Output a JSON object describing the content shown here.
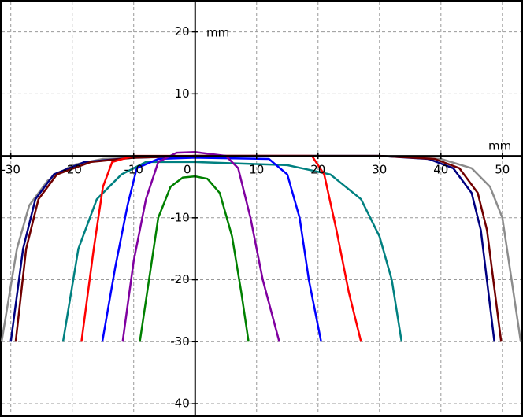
{
  "chart_data": {
    "type": "line",
    "x_label": "mm",
    "y_label": "mm",
    "xlim": [
      -31.5,
      53.1
    ],
    "ylim": [
      -41.9,
      24.9
    ],
    "xticks": [
      -30,
      -20,
      -10,
      0,
      10,
      20,
      30,
      40,
      50
    ],
    "yticks": [
      -40,
      -30,
      -20,
      -10,
      10,
      20
    ],
    "grid": true,
    "series": [
      {
        "color": "#8c8c8c",
        "x": [
          -31.5,
          -29,
          -27,
          -24,
          -20,
          -15,
          0,
          30,
          40,
          45,
          48,
          50,
          53
        ],
        "values": [
          -30,
          -15,
          -8,
          -4,
          -1.5,
          -0.5,
          0,
          0,
          -0.5,
          -2,
          -5,
          -10,
          -30
        ]
      },
      {
        "color": "#000080",
        "x": [
          -30,
          -28,
          -26,
          -23,
          -18,
          -10,
          0,
          30,
          38,
          42,
          45,
          46.5,
          48.7
        ],
        "values": [
          -30,
          -15,
          -7,
          -3,
          -1,
          -0.3,
          0,
          0,
          -0.5,
          -2,
          -6,
          -12,
          -30
        ]
      },
      {
        "color": "#700000",
        "x": [
          -29.2,
          -27.5,
          -25.5,
          -22.5,
          -17,
          -10,
          0,
          30,
          39,
          43,
          46,
          47.5,
          49.8
        ],
        "values": [
          -30,
          -15,
          -7,
          -3,
          -1,
          -0.3,
          0,
          0,
          -0.5,
          -2,
          -6,
          -12,
          -30
        ]
      },
      {
        "color": "#008080",
        "x": [
          -21.5,
          -19,
          -16,
          -12,
          -8,
          0,
          15,
          22,
          27,
          30,
          32,
          33.6
        ],
        "values": [
          -30,
          -15,
          -7,
          -3,
          -1,
          -1,
          -1.5,
          -3,
          -7,
          -13,
          -20,
          -30
        ]
      },
      {
        "color": "#ff0000",
        "x": [
          -18.5,
          -16.5,
          -15,
          -13.5,
          -10,
          0,
          19,
          21,
          23,
          25,
          27
        ],
        "values": [
          -30,
          -15,
          -5,
          -1,
          0,
          0,
          0,
          -3,
          -12,
          -22,
          -30
        ]
      },
      {
        "color": "#0000ff",
        "x": [
          -15.1,
          -13,
          -11,
          -9.5,
          -6,
          0,
          12,
          15,
          17,
          18.5,
          20.5
        ],
        "values": [
          -30,
          -18,
          -8,
          -2,
          -0.5,
          -0.3,
          -0.5,
          -3,
          -10,
          -20,
          -30
        ]
      },
      {
        "color": "#8000a0",
        "x": [
          -11.8,
          -10,
          -8,
          -6,
          -3,
          0,
          5,
          7,
          9,
          11,
          13.7
        ],
        "values": [
          -30,
          -17,
          -7,
          -1,
          0.5,
          0.6,
          0,
          -2,
          -10,
          -20,
          -30
        ]
      },
      {
        "color": "#008000",
        "x": [
          -9,
          -7.5,
          -6,
          -4,
          -2,
          0,
          2,
          4,
          6,
          7.5,
          8.7
        ],
        "values": [
          -30,
          -20,
          -10,
          -5,
          -3.5,
          -3.3,
          -3.7,
          -6,
          -13,
          -22,
          -30
        ]
      }
    ]
  }
}
